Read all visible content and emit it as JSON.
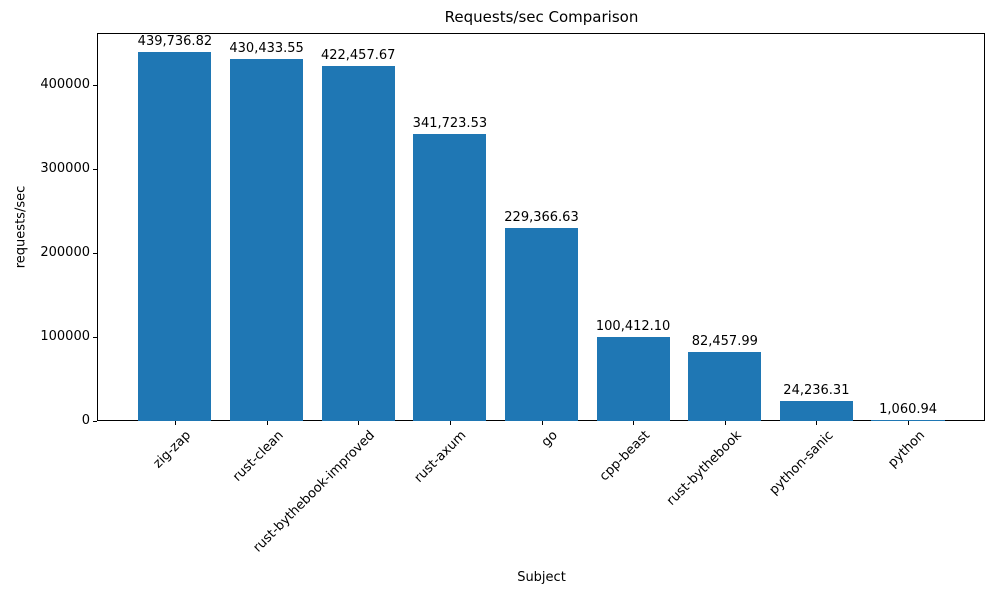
{
  "chart_data": {
    "type": "bar",
    "title": "Requests/sec Comparison",
    "xlabel": "Subject",
    "ylabel": "requests/sec",
    "categories": [
      "zig-zap",
      "rust-clean",
      "rust-bythebook-improved",
      "rust-axum",
      "go",
      "cpp-beast",
      "rust-bythebook",
      "python-sanic",
      "python"
    ],
    "values": [
      439736.82,
      430433.55,
      422457.67,
      341723.53,
      229366.63,
      100412.1,
      82457.99,
      24236.31,
      1060.94
    ],
    "value_labels": [
      "439,736.82",
      "430,433.55",
      "422,457.67",
      "341,723.53",
      "229,366.63",
      "100,412.10",
      "82,457.99",
      "24,236.31",
      "1,060.94"
    ],
    "yticks": [
      0,
      100000,
      200000,
      300000,
      400000
    ],
    "ytick_labels": [
      "0",
      "100000",
      "200000",
      "300000",
      "400000"
    ],
    "ylim": [
      0,
      461723
    ],
    "bar_color": "#1f77b4",
    "grid": false,
    "legend_position": "none"
  }
}
